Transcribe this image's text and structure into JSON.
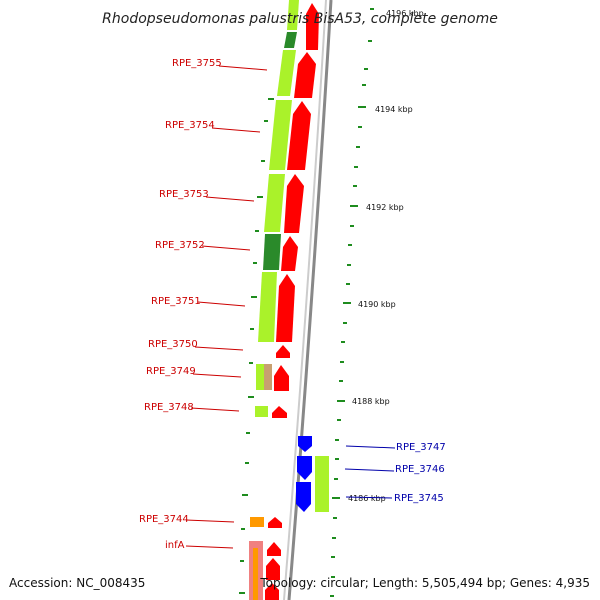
{
  "title": "Rhodopseudomonas palustris BisA53, complete genome",
  "accession": "Accession: NC_008435",
  "summary": "Topology: circular; Length: 5,505,494 bp; Genes: 4,935",
  "colors": {
    "forward_cds": "#ff0000",
    "reverse_cds": "#0000ff",
    "feature_light": "#aaf22a",
    "feature_dark": "#2a8a2a",
    "ruler": "#999999",
    "tick": "#1e8c1e",
    "label_forward": "#cc0000",
    "label_reverse": "#0000aa",
    "orange_feature": "#ff9900",
    "pink_feature": "#f08080"
  },
  "ticks": [
    "4196 kbp",
    "4194 kbp",
    "4192 kbp",
    "4190 kbp",
    "4188 kbp",
    "4186 kbp"
  ],
  "forward_genes": [
    "RPE_3755",
    "RPE_3754",
    "RPE_3753",
    "RPE_3752",
    "RPE_3751",
    "RPE_3750",
    "RPE_3749",
    "RPE_3748",
    "RPE_3744",
    "infA"
  ],
  "reverse_genes": [
    "RPE_3747",
    "RPE_3746",
    "RPE_3745"
  ]
}
